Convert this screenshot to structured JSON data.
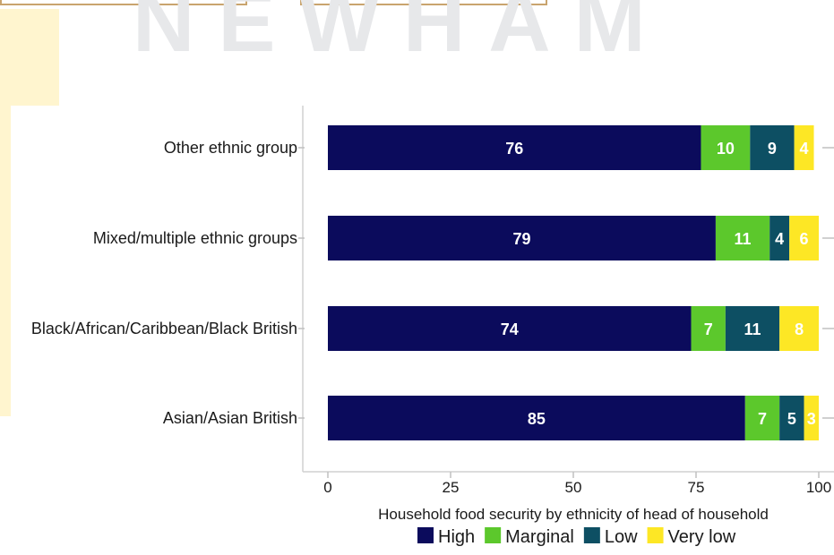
{
  "header": {
    "watermark": "NEWHAM"
  },
  "chart_data": {
    "type": "bar",
    "orientation": "horizontal",
    "stacked": true,
    "categories": [
      "Other ethnic group",
      "Mixed/multiple ethnic groups",
      "Black/African/Caribbean/Black British",
      "Asian/Asian British"
    ],
    "series": [
      {
        "name": "High",
        "color": "#0b0b5c",
        "values": [
          76,
          79,
          74,
          85
        ]
      },
      {
        "name": "Marginal",
        "color": "#5cc82c",
        "values": [
          10,
          11,
          7,
          7
        ]
      },
      {
        "name": "Low",
        "color": "#0d4f63",
        "values": [
          9,
          4,
          11,
          5
        ]
      },
      {
        "name": "Very low",
        "color": "#fde725",
        "values": [
          4,
          6,
          8,
          3
        ]
      }
    ],
    "xlabel": "Household food security by ethnicity of head of household",
    "ylabel": "",
    "xlim": [
      0,
      100
    ],
    "xticks": [
      0,
      25,
      50,
      75,
      100
    ],
    "grid": false,
    "legend_position": "bottom"
  }
}
